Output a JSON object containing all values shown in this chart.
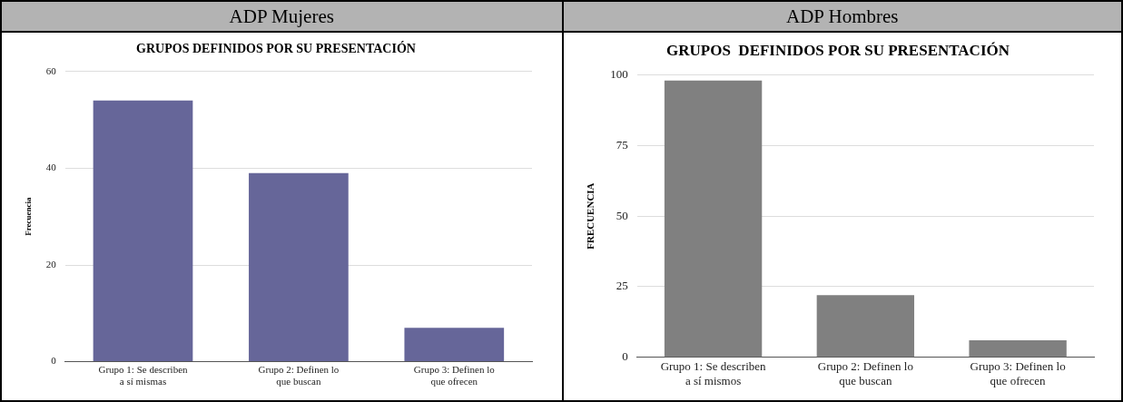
{
  "chart_data": [
    {
      "type": "bar",
      "subtitle": "ADP Mujeres",
      "title": "GRUPOS DEFINIDOS POR SU PRESENTACIÓN",
      "ylabel": "Frecuencia",
      "categories": [
        "Grupo 1: Se describen a sí mismas",
        "Grupo 2: Definen lo que buscan",
        "Grupo 3: Definen lo que ofrecen"
      ],
      "values": [
        54,
        39,
        7
      ],
      "color": "#666699",
      "ylim": [
        0,
        60
      ],
      "yticks": [
        0,
        20,
        40,
        60
      ],
      "grid": "y"
    },
    {
      "type": "bar",
      "subtitle": "ADP Hombres",
      "title": "GRUPOS  DEFINIDOS POR SU PRESENTACIÓN",
      "ylabel": "FRECUENCIA",
      "categories": [
        "Grupo 1: Se describen a sí mismos",
        "Grupo 2: Definen lo que buscan",
        "Grupo 3: Definen lo que ofrecen"
      ],
      "values": [
        98,
        22,
        6
      ],
      "color": "#808080",
      "ylim": [
        0,
        100
      ],
      "yticks": [
        0,
        25,
        50,
        75,
        100
      ],
      "grid": "y"
    }
  ]
}
